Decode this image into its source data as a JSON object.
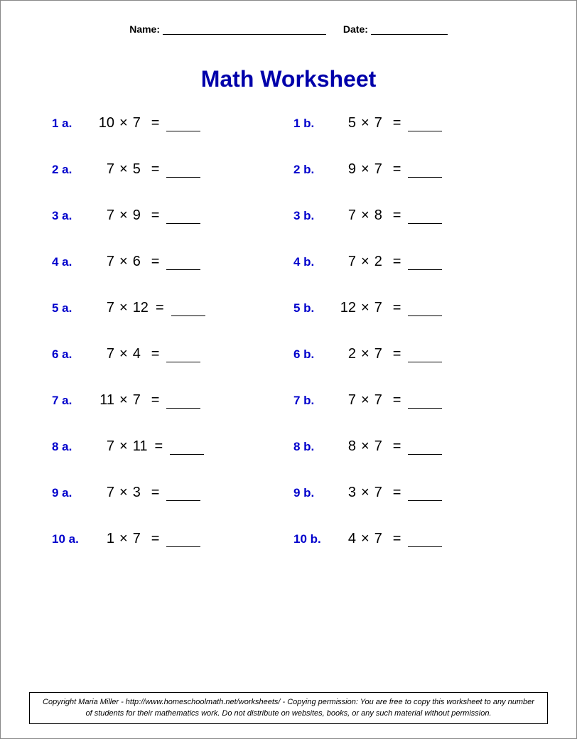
{
  "header": {
    "name_label": "Name:",
    "name_line_width": 230,
    "date_label": "Date:",
    "date_line_width": 108
  },
  "title": {
    "text": "Math Worksheet",
    "color": "#0000aa"
  },
  "label_color": "#0000cc",
  "problems": [
    {
      "labelA": "1 a.",
      "a1": "10",
      "a2": "7",
      "labelB": "1 b.",
      "b1": "5",
      "b2": "7"
    },
    {
      "labelA": "2 a.",
      "a1": "7",
      "a2": "5",
      "labelB": "2 b.",
      "b1": "9",
      "b2": "7"
    },
    {
      "labelA": "3 a.",
      "a1": "7",
      "a2": "9",
      "labelB": "3 b.",
      "b1": "7",
      "b2": "8"
    },
    {
      "labelA": "4 a.",
      "a1": "7",
      "a2": "6",
      "labelB": "4 b.",
      "b1": "7",
      "b2": "2"
    },
    {
      "labelA": "5 a.",
      "a1": "7",
      "a2": "12",
      "labelB": "5 b.",
      "b1": "12",
      "b2": "7"
    },
    {
      "labelA": "6 a.",
      "a1": "7",
      "a2": "4",
      "labelB": "6 b.",
      "b1": "2",
      "b2": "7"
    },
    {
      "labelA": "7 a.",
      "a1": "11",
      "a2": "7",
      "labelB": "7 b.",
      "b1": "7",
      "b2": "7"
    },
    {
      "labelA": "8 a.",
      "a1": "7",
      "a2": "11",
      "labelB": "8 b.",
      "b1": "8",
      "b2": "7"
    },
    {
      "labelA": "9 a.",
      "a1": "7",
      "a2": "3",
      "labelB": "9 b.",
      "b1": "3",
      "b2": "7"
    },
    {
      "labelA": "10 a.",
      "a1": "1",
      "a2": "7",
      "labelB": "10 b.",
      "b1": "4",
      "b2": "7"
    }
  ],
  "operator": "×",
  "equals": "=",
  "footer": {
    "text": "Copyright Maria Miller - http://www.homeschoolmath.net/worksheets/ - Copying permission: You are free to copy this worksheet to any number of students for their mathematics work. Do not distribute on websites, books, or any such material without permission."
  }
}
